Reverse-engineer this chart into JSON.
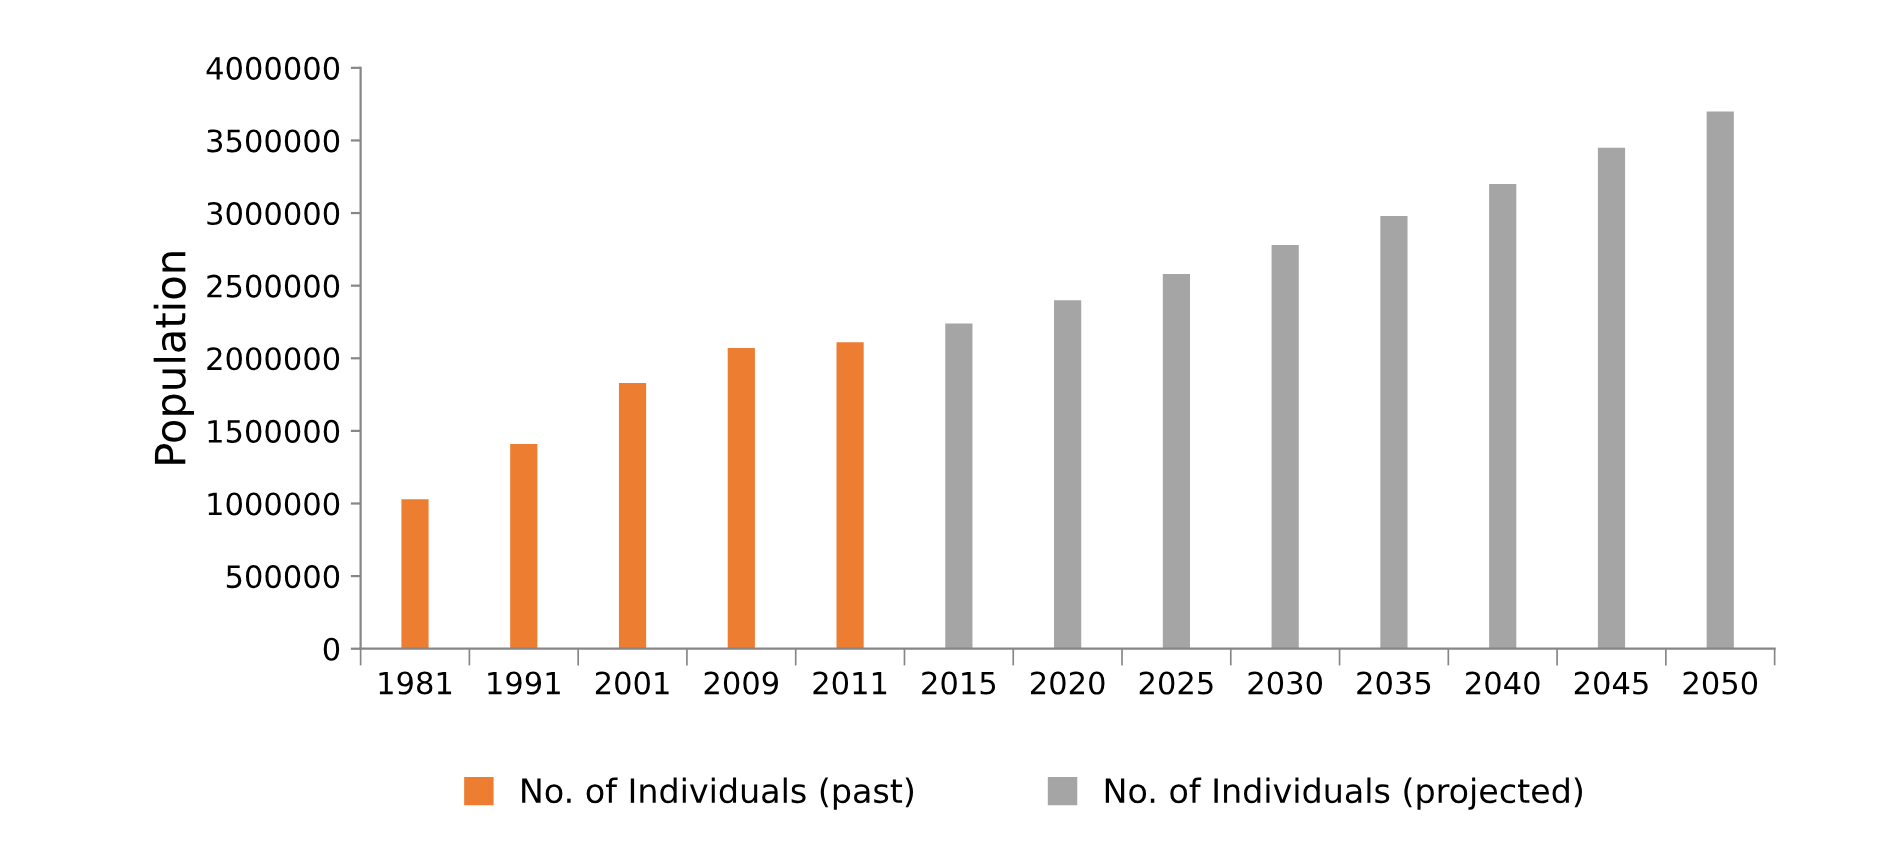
{
  "chart_data": {
    "type": "bar",
    "ylabel": "Population",
    "categories": [
      "1981",
      "1991",
      "2001",
      "2009",
      "2011",
      "2015",
      "2020",
      "2025",
      "2030",
      "2035",
      "2040",
      "2045",
      "2050"
    ],
    "series": [
      {
        "name": "No. of Individuals (past)",
        "color": "#ed7d31",
        "values": [
          1030000,
          1410000,
          1830000,
          2070000,
          2110000,
          null,
          null,
          null,
          null,
          null,
          null,
          null,
          null
        ]
      },
      {
        "name": "No. of Individuals (projected)",
        "color": "#a5a5a5",
        "values": [
          null,
          null,
          null,
          null,
          null,
          2240000,
          2400000,
          2580000,
          2780000,
          2980000,
          3200000,
          3450000,
          3700000
        ]
      }
    ],
    "ylim": [
      0,
      4000000
    ],
    "yticks": [
      0,
      500000,
      1000000,
      1500000,
      2000000,
      2500000,
      3000000,
      3500000,
      4000000
    ],
    "grid": false,
    "legend": "bottom"
  }
}
